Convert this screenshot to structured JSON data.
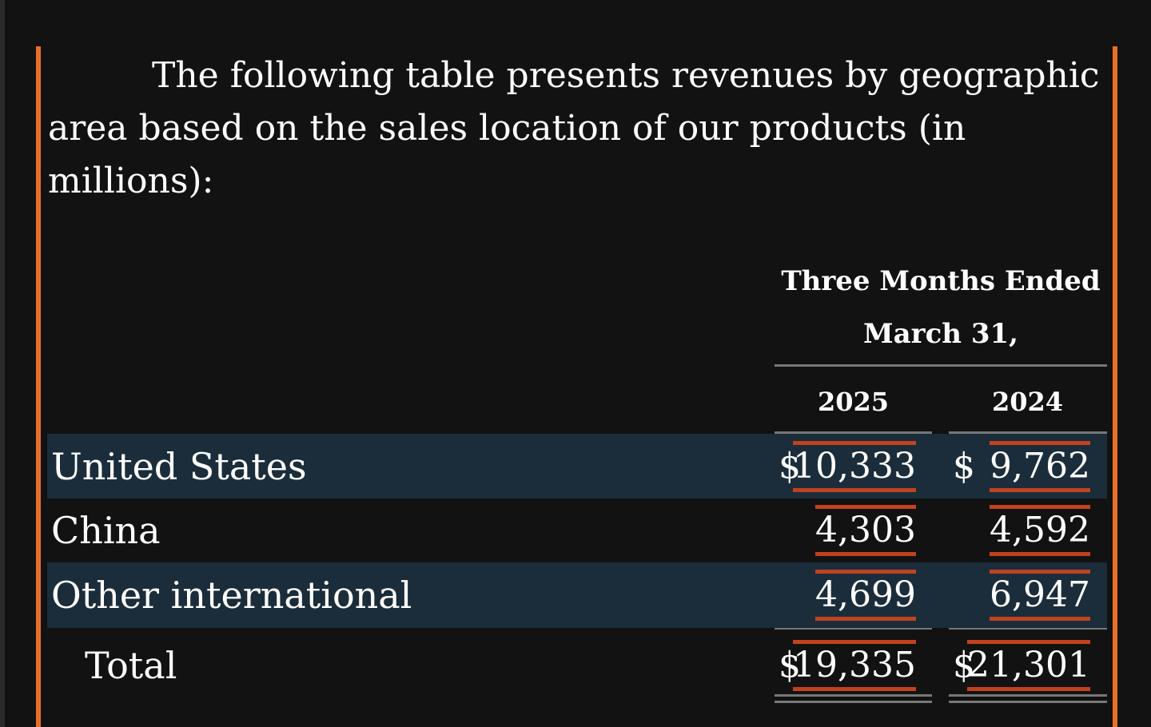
{
  "intro": "The following table presents revenues by geographic area based on the sales location of our products (in millions):",
  "table": {
    "header": [
      "Three Months Ended",
      "March 31,"
    ],
    "columns": [
      "2025",
      "2024"
    ],
    "rows": [
      {
        "label": "United States",
        "cells": [
          {
            "currency": "$",
            "value": "10,333"
          },
          {
            "currency": "$",
            "value": "9,762"
          }
        ]
      },
      {
        "label": "China",
        "cells": [
          {
            "value": "4,303"
          },
          {
            "value": "4,592"
          }
        ]
      },
      {
        "label": "Other international",
        "cells": [
          {
            "value": "4,699"
          },
          {
            "value": "6,947"
          }
        ]
      },
      {
        "label": "Total",
        "cells": [
          {
            "currency": "$",
            "value": "19,335"
          },
          {
            "currency": "$",
            "value": "21,301"
          }
        ]
      }
    ]
  }
}
